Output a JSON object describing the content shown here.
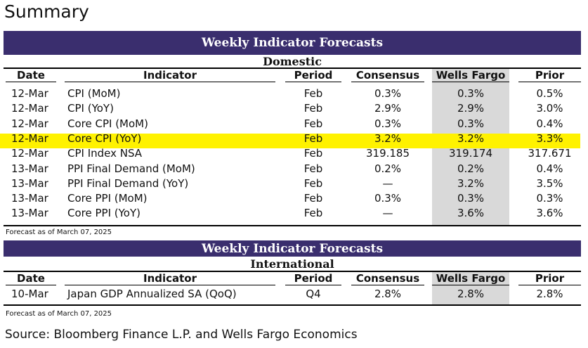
{
  "page_title": "Summary",
  "columns": {
    "date": "Date",
    "indicator": "Indicator",
    "period": "Period",
    "consensus": "Consensus",
    "wells_fargo": "Wells Fargo",
    "prior": "Prior"
  },
  "domestic": {
    "band_title": "Weekly Indicator Forecasts",
    "section_title": "Domestic",
    "highlighted_row": "Core CPI (YoY)",
    "highlight_color": "#fff200",
    "rows": [
      {
        "date": "12-Mar",
        "indicator": "CPI (MoM)",
        "period": "Feb",
        "consensus": "0.3%",
        "wells_fargo": "0.3%",
        "prior": "0.5%"
      },
      {
        "date": "12-Mar",
        "indicator": "CPI (YoY)",
        "period": "Feb",
        "consensus": "2.9%",
        "wells_fargo": "2.9%",
        "prior": "3.0%"
      },
      {
        "date": "12-Mar",
        "indicator": "Core CPI (MoM)",
        "period": "Feb",
        "consensus": "0.3%",
        "wells_fargo": "0.3%",
        "prior": "0.4%"
      },
      {
        "date": "12-Mar",
        "indicator": "Core CPI (YoY)",
        "period": "Feb",
        "consensus": "3.2%",
        "wells_fargo": "3.2%",
        "prior": "3.3%"
      },
      {
        "date": "12-Mar",
        "indicator": "CPI Index NSA",
        "period": "Feb",
        "consensus": "319.185",
        "wells_fargo": "319.174",
        "prior": "317.671"
      },
      {
        "date": "13-Mar",
        "indicator": "PPI Final Demand (MoM)",
        "period": "Feb",
        "consensus": "0.2%",
        "wells_fargo": "0.2%",
        "prior": "0.4%"
      },
      {
        "date": "13-Mar",
        "indicator": "PPI Final Demand (YoY)",
        "period": "Feb",
        "consensus": "—",
        "wells_fargo": "3.2%",
        "prior": "3.5%"
      },
      {
        "date": "13-Mar",
        "indicator": "Core PPI (MoM)",
        "period": "Feb",
        "consensus": "0.3%",
        "wells_fargo": "0.3%",
        "prior": "0.3%"
      },
      {
        "date": "13-Mar",
        "indicator": "Core PPI (YoY)",
        "period": "Feb",
        "consensus": "—",
        "wells_fargo": "3.6%",
        "prior": "3.6%"
      }
    ],
    "note": "Forecast as of March 07, 2025"
  },
  "international": {
    "band_title": "Weekly Indicator Forecasts",
    "section_title": "International",
    "rows": [
      {
        "date": "10-Mar",
        "indicator": "Japan GDP Annualized SA (QoQ)",
        "period": "Q4",
        "consensus": "2.8%",
        "wells_fargo": "2.8%",
        "prior": "2.8%"
      }
    ],
    "note": "Forecast as of March 07, 2025"
  },
  "source": "Source: Bloomberg Finance L.P. and Wells Fargo Economics",
  "colors": {
    "band": "#3a2e6e",
    "shade": "#d9d9d9"
  }
}
